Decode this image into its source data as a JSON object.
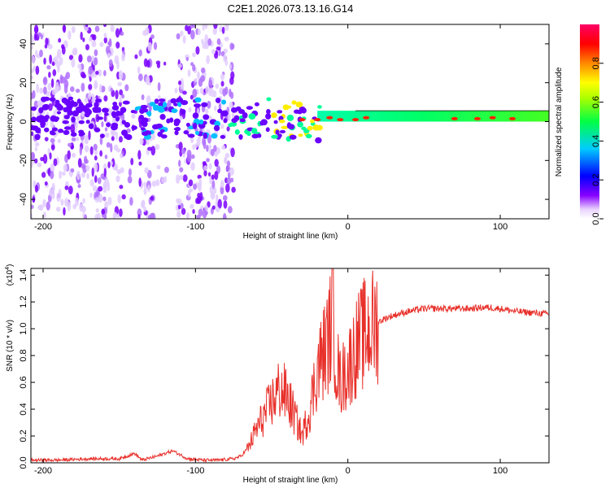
{
  "title": "C2E1.2026.073.13.16.G14",
  "chart_data": [
    {
      "type": "heatmap",
      "name": "spectrogram",
      "xlabel": "Height of straight line (km)",
      "ylabel": "Frequency (Hz)",
      "xlim": [
        -208,
        132
      ],
      "ylim": [
        -50,
        50
      ],
      "xticks": [
        -200,
        -100,
        0,
        100
      ],
      "xtick_labels": [
        "-200",
        "-100",
        "0",
        "100"
      ],
      "yticks": [
        -40,
        -20,
        0,
        20,
        40
      ],
      "ytick_labels": [
        "-40",
        "-20",
        "0",
        "20",
        "40"
      ],
      "noise_region_km": [
        -208,
        -75
      ],
      "signal_band_hz": [
        0,
        6
      ],
      "colorbar": {
        "label": "Normalized spectral amplitude",
        "range": [
          0,
          1
        ],
        "ticks": [
          0.0,
          0.2,
          0.4,
          0.6,
          0.8
        ],
        "tick_labels": [
          "0.0",
          "0.2",
          "0.4",
          "0.6",
          "0.8"
        ],
        "colors": [
          "#ffffff",
          "#8800ff",
          "#0000ff",
          "#00ffff",
          "#00ff00",
          "#ffff00",
          "#ff8800",
          "#ff0000",
          "#ff0066"
        ]
      }
    },
    {
      "type": "line",
      "name": "snr",
      "xlabel": "Height of straight line (km)",
      "ylabel": "SNR (10 * v/v)",
      "scale_label": "(x10",
      "scale_exp": "4",
      "scale_close": ")",
      "xlim": [
        -208,
        132
      ],
      "ylim": [
        0,
        1.45
      ],
      "xticks": [
        -200,
        -100,
        0,
        100
      ],
      "xtick_labels": [
        "-200",
        "-100",
        "0",
        "100"
      ],
      "yticks": [
        0.0,
        0.2,
        0.4,
        0.6,
        0.8,
        1.0,
        1.2,
        1.4
      ],
      "ytick_labels": [
        "0.0",
        "0.2",
        "0.4",
        "0.6",
        "0.8",
        "1.0",
        "1.2",
        "1.4"
      ],
      "color": "#e8302a",
      "series": [
        {
          "name": "SNR",
          "x": [
            -208,
            -190,
            -170,
            -150,
            -140,
            -135,
            -125,
            -115,
            -105,
            -95,
            -85,
            -75,
            -70,
            -65,
            -60,
            -55,
            -50,
            -45,
            -40,
            -35,
            -30,
            -25,
            -20,
            -15,
            -12,
            -10,
            -8,
            -5,
            0,
            5,
            10,
            15,
            20,
            25,
            30,
            40,
            50,
            60,
            70,
            80,
            90,
            100,
            110,
            120,
            132
          ],
          "y": [
            0.02,
            0.02,
            0.03,
            0.03,
            0.07,
            0.02,
            0.05,
            0.09,
            0.03,
            0.02,
            0.02,
            0.03,
            0.05,
            0.12,
            0.25,
            0.35,
            0.45,
            0.55,
            0.5,
            0.35,
            0.2,
            0.4,
            0.7,
            0.85,
            0.95,
            1.2,
            0.8,
            0.6,
            0.7,
            0.85,
            0.95,
            1.0,
            1.05,
            1.08,
            1.1,
            1.13,
            1.15,
            1.15,
            1.15,
            1.15,
            1.16,
            1.15,
            1.13,
            1.12,
            1.11
          ]
        }
      ]
    }
  ]
}
